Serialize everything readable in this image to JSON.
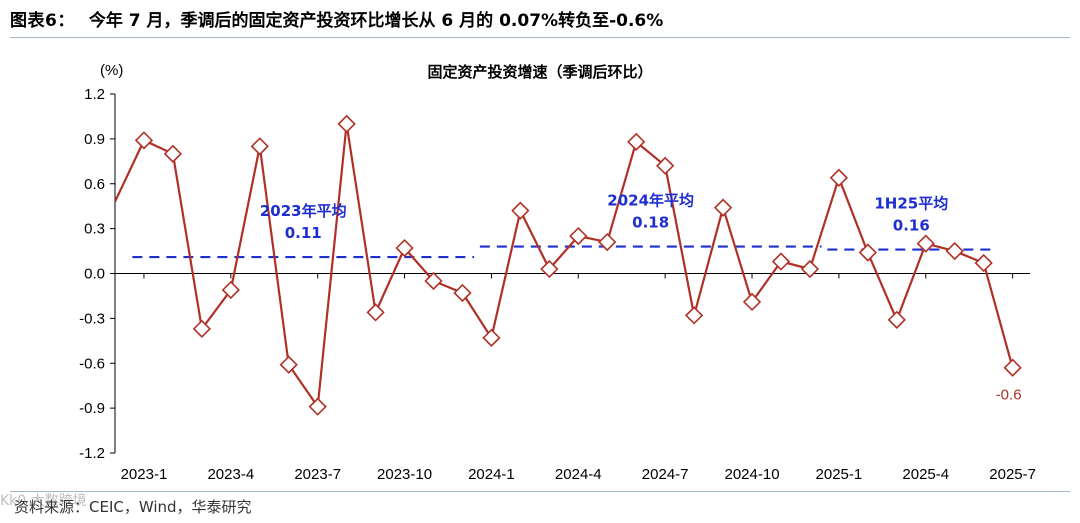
{
  "header": {
    "figure_label": "图表6：",
    "title": "今年 7 月，季调后的固定资产投资环比增长从 6 月的 0.07%转负至-0.6%"
  },
  "footer": {
    "source": "资料来源：CEIC，Wind，华泰研究",
    "watermark": "Kk0 大数跨境"
  },
  "colors": {
    "line": "#b03026",
    "marker_fill": "#ffffff",
    "average_line": "#1f2ecf",
    "rule": "#a7b6c6"
  },
  "chart_data": {
    "type": "line",
    "title": "固定资产投资增速（季调后环比）",
    "ylabel": "(%)",
    "xlabel": "",
    "ylim": [
      -1.2,
      1.2
    ],
    "yticks": [
      "1.2",
      "0.9",
      "0.6",
      "0.3",
      "0.0",
      "-0.3",
      "-0.6",
      "-0.9",
      "-1.2"
    ],
    "ytick_values": [
      1.2,
      0.9,
      0.6,
      0.3,
      0.0,
      -0.3,
      -0.6,
      -0.9,
      -1.2
    ],
    "xtick_labels": [
      "2023-1",
      "2023-4",
      "2023-7",
      "2023-10",
      "2024-1",
      "2024-4",
      "2024-7",
      "2024-10",
      "2025-1",
      "2025-4",
      "2025-7"
    ],
    "xtick_index": [
      1,
      4,
      7,
      10,
      13,
      16,
      19,
      22,
      25,
      28,
      31
    ],
    "x": [
      "2022-12",
      "2023-1",
      "2023-2",
      "2023-3",
      "2023-4",
      "2023-5",
      "2023-6",
      "2023-7",
      "2023-8",
      "2023-9",
      "2023-10",
      "2023-11",
      "2023-12",
      "2024-1",
      "2024-2",
      "2024-3",
      "2024-4",
      "2024-5",
      "2024-6",
      "2024-7",
      "2024-8",
      "2024-9",
      "2024-10",
      "2024-11",
      "2024-12",
      "2025-1",
      "2025-2",
      "2025-3",
      "2025-4",
      "2025-5",
      "2025-6",
      "2025-7"
    ],
    "series": [
      {
        "values": [
          0.48,
          0.89,
          0.8,
          -0.37,
          -0.11,
          0.85,
          -0.61,
          -0.89,
          1.0,
          -0.26,
          0.17,
          -0.05,
          -0.13,
          -0.43,
          0.42,
          0.03,
          0.25,
          0.21,
          0.88,
          0.72,
          -0.28,
          0.44,
          -0.19,
          0.08,
          0.03,
          0.64,
          0.14,
          -0.31,
          0.2,
          0.15,
          0.07,
          -0.63
        ],
        "marker_from_index": 1
      }
    ],
    "averages": [
      {
        "label": "2023年平均",
        "value_text": "0.11",
        "value": 0.11,
        "from_index": 1,
        "to_index": 12
      },
      {
        "label": "2024年平均",
        "value_text": "0.18",
        "value": 0.18,
        "from_index": 13,
        "to_index": 24
      },
      {
        "label": "1H25平均",
        "value_text": "0.16",
        "value": 0.16,
        "from_index": 25,
        "to_index": 30
      }
    ],
    "last_label": "-0.6",
    "grid": false,
    "legend": "none"
  }
}
